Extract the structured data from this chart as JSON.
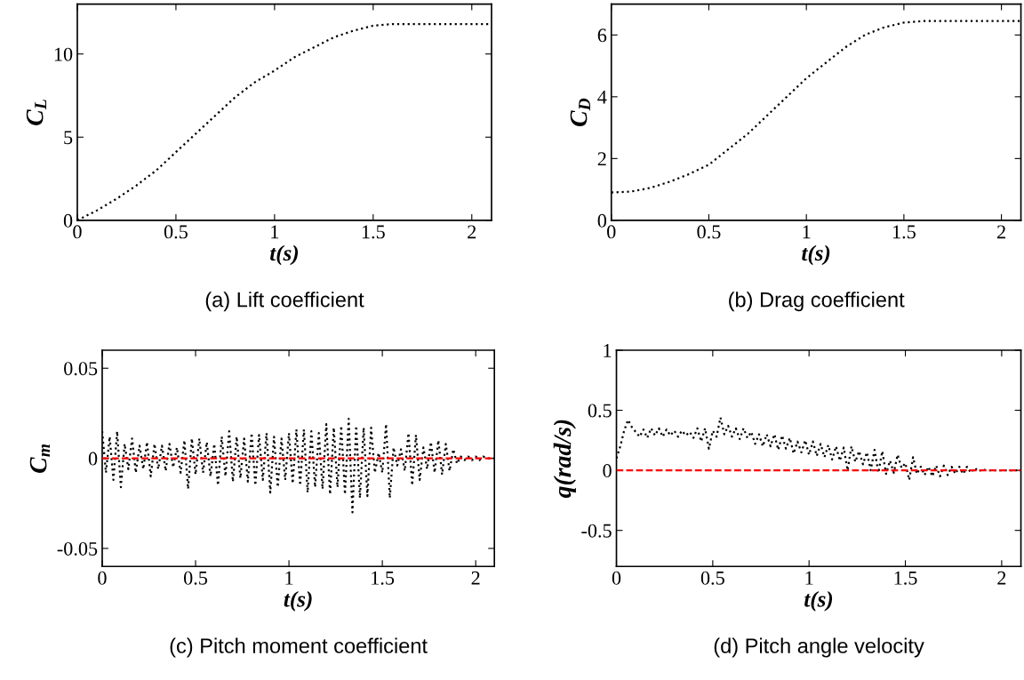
{
  "chart_data": [
    {
      "type": "line",
      "title": "(a) Lift coefficient",
      "xlabel": "t(s)",
      "ylabel": "C$_{L}$",
      "xlim": [
        0,
        2.1
      ],
      "xticks": [
        0,
        0.5,
        1,
        1.5,
        2
      ],
      "ylim": [
        0,
        13
      ],
      "yticks": [
        0,
        5,
        10
      ],
      "line_style": "dotted",
      "marker": "none",
      "series": [
        {
          "color": "#000000",
          "x": [
            0,
            0.1,
            0.2,
            0.3,
            0.4,
            0.5,
            0.6,
            0.7,
            0.8,
            0.9,
            1.0,
            1.1,
            1.2,
            1.3,
            1.4,
            1.5,
            1.6,
            1.8,
            2.1
          ],
          "values": [
            0,
            0.6,
            1.3,
            2.1,
            3.0,
            4.1,
            5.2,
            6.3,
            7.4,
            8.3,
            9.0,
            9.8,
            10.4,
            11.0,
            11.4,
            11.7,
            11.8,
            11.8,
            11.8
          ]
        }
      ]
    },
    {
      "type": "line",
      "title": "(b) Drag coefficient",
      "xlabel": "t(s)",
      "ylabel": "C$_{D}$",
      "xlim": [
        0,
        2.1
      ],
      "xticks": [
        0,
        0.5,
        1,
        1.5,
        2
      ],
      "ylim": [
        0,
        7
      ],
      "yticks": [
        0,
        2,
        4,
        6
      ],
      "line_style": "dotted",
      "marker": "none",
      "series": [
        {
          "color": "#000000",
          "x": [
            0,
            0.1,
            0.2,
            0.3,
            0.4,
            0.5,
            0.6,
            0.7,
            0.8,
            0.9,
            1.0,
            1.1,
            1.2,
            1.3,
            1.4,
            1.5,
            1.6,
            2.1
          ],
          "values": [
            0.9,
            0.93,
            1.05,
            1.25,
            1.5,
            1.8,
            2.3,
            2.8,
            3.4,
            4.0,
            4.6,
            5.1,
            5.6,
            6.0,
            6.25,
            6.4,
            6.45,
            6.45
          ]
        }
      ]
    },
    {
      "type": "line",
      "title": "(c) Pitch moment coefficient",
      "xlabel": "t(s)",
      "ylabel": "C$_{m}$",
      "xlim": [
        0,
        2.1
      ],
      "xticks": [
        0,
        0.5,
        1,
        1.5,
        2
      ],
      "ylim": [
        -0.06,
        0.06
      ],
      "yticks": [
        -0.05,
        0,
        0.05
      ],
      "line_style": "dotted",
      "marker": "none",
      "ref_lines": [
        {
          "axis": "y",
          "value": 0,
          "color": "#ff0000",
          "line_style": "dashed"
        }
      ],
      "series": [
        {
          "color": "#000000",
          "x": [
            0,
            0.02,
            0.04,
            0.06,
            0.08,
            0.1,
            0.12,
            0.14,
            0.16,
            0.18,
            0.2,
            0.22,
            0.24,
            0.26,
            0.28,
            0.3,
            0.32,
            0.34,
            0.36,
            0.38,
            0.4,
            0.42,
            0.44,
            0.46,
            0.48,
            0.5,
            0.52,
            0.54,
            0.56,
            0.58,
            0.6,
            0.62,
            0.64,
            0.66,
            0.68,
            0.7,
            0.72,
            0.74,
            0.76,
            0.78,
            0.8,
            0.82,
            0.84,
            0.86,
            0.88,
            0.9,
            0.92,
            0.94,
            0.96,
            0.98,
            1.0,
            1.02,
            1.04,
            1.06,
            1.08,
            1.1,
            1.12,
            1.14,
            1.16,
            1.18,
            1.2,
            1.22,
            1.24,
            1.26,
            1.28,
            1.3,
            1.32,
            1.34,
            1.36,
            1.38,
            1.4,
            1.42,
            1.44,
            1.46,
            1.48,
            1.5,
            1.52,
            1.54,
            1.56,
            1.58,
            1.6,
            1.62,
            1.64,
            1.66,
            1.68,
            1.7,
            1.72,
            1.74,
            1.76,
            1.78,
            1.8,
            1.82,
            1.84,
            1.86,
            1.88,
            1.9,
            1.92,
            1.94,
            1.96,
            1.98,
            2.0,
            2.02,
            2.04,
            2.06,
            2.08,
            2.1
          ],
          "values": [
            0.015,
            -0.008,
            0.012,
            -0.012,
            0.015,
            -0.016,
            0.008,
            -0.006,
            0.011,
            -0.008,
            0.007,
            -0.006,
            0.009,
            -0.01,
            0.008,
            -0.006,
            0.007,
            -0.007,
            0.008,
            -0.005,
            0.006,
            -0.008,
            0.01,
            -0.017,
            0.011,
            -0.009,
            0.011,
            -0.008,
            0.009,
            -0.01,
            0.008,
            -0.015,
            0.012,
            -0.01,
            0.015,
            -0.013,
            0.012,
            -0.011,
            0.011,
            -0.013,
            0.014,
            -0.015,
            0.013,
            -0.012,
            0.014,
            -0.019,
            0.012,
            -0.016,
            0.011,
            -0.012,
            0.014,
            -0.014,
            0.016,
            -0.015,
            0.016,
            -0.019,
            0.015,
            -0.016,
            0.014,
            -0.017,
            0.019,
            -0.02,
            0.017,
            -0.016,
            0.018,
            -0.02,
            0.022,
            -0.03,
            0.018,
            -0.022,
            0.017,
            -0.021,
            0.017,
            -0.008,
            0.003,
            -0.008,
            0.019,
            -0.022,
            0.006,
            -0.004,
            0.005,
            -0.007,
            0.014,
            -0.015,
            0.013,
            -0.012,
            0.006,
            -0.006,
            0.009,
            -0.008,
            0.01,
            -0.009,
            0.008,
            -0.007,
            0.005,
            -0.003,
            0.001,
            -0.001,
            0.001,
            -0.001,
            0.001,
            -0.001,
            0.001,
            0,
            0,
            0
          ]
        }
      ]
    },
    {
      "type": "line",
      "title": "(d) Pitch angle velocity",
      "xlabel": "t(s)",
      "ylabel": "q(rad/s)",
      "xlim": [
        0,
        2.1
      ],
      "xticks": [
        0,
        0.5,
        1,
        1.5,
        2
      ],
      "ylim": [
        -0.8,
        1
      ],
      "yticks": [
        -0.5,
        0,
        0.5,
        1
      ],
      "line_style": "dotted",
      "marker": "none",
      "ref_lines": [
        {
          "axis": "y",
          "value": 0,
          "color": "#ff0000",
          "line_style": "dashed"
        }
      ],
      "series": [
        {
          "color": "#000000",
          "x": [
            0,
            0.02,
            0.04,
            0.06,
            0.08,
            0.1,
            0.12,
            0.14,
            0.16,
            0.18,
            0.2,
            0.22,
            0.24,
            0.26,
            0.28,
            0.3,
            0.32,
            0.34,
            0.36,
            0.38,
            0.4,
            0.42,
            0.44,
            0.46,
            0.48,
            0.5,
            0.52,
            0.54,
            0.56,
            0.58,
            0.6,
            0.62,
            0.64,
            0.66,
            0.68,
            0.7,
            0.72,
            0.74,
            0.76,
            0.78,
            0.8,
            0.82,
            0.84,
            0.86,
            0.88,
            0.9,
            0.92,
            0.94,
            0.96,
            0.98,
            1.0,
            1.02,
            1.04,
            1.06,
            1.08,
            1.1,
            1.12,
            1.14,
            1.16,
            1.18,
            1.2,
            1.22,
            1.24,
            1.26,
            1.28,
            1.3,
            1.32,
            1.34,
            1.36,
            1.38,
            1.4,
            1.42,
            1.44,
            1.46,
            1.48,
            1.5,
            1.52,
            1.54,
            1.56,
            1.58,
            1.6,
            1.62,
            1.64,
            1.66,
            1.68,
            1.7,
            1.72,
            1.74,
            1.76,
            1.78,
            1.8,
            1.82,
            1.84,
            1.86,
            1.88,
            1.9,
            1.92,
            1.94,
            1.96,
            1.98,
            2.0,
            2.02,
            2.04,
            2.06,
            2.08,
            2.1
          ],
          "values": [
            0.1,
            0.2,
            0.33,
            0.42,
            0.36,
            0.32,
            0.28,
            0.34,
            0.27,
            0.35,
            0.29,
            0.35,
            0.28,
            0.34,
            0.29,
            0.33,
            0.28,
            0.33,
            0.29,
            0.32,
            0.27,
            0.35,
            0.24,
            0.35,
            0.18,
            0.33,
            0.28,
            0.44,
            0.3,
            0.37,
            0.28,
            0.35,
            0.26,
            0.35,
            0.27,
            0.32,
            0.22,
            0.3,
            0.2,
            0.3,
            0.2,
            0.3,
            0.17,
            0.29,
            0.18,
            0.27,
            0.14,
            0.24,
            0.15,
            0.25,
            0.13,
            0.24,
            0.12,
            0.22,
            0.11,
            0.21,
            0.09,
            0.2,
            0.08,
            0.19,
            0.0,
            0.2,
            0.07,
            0.16,
            0.05,
            0.15,
            0.0,
            0.17,
            -0.02,
            0.16,
            -0.03,
            0.08,
            -0.02,
            0.13,
            0.02,
            0.06,
            -0.08,
            0.11,
            -0.03,
            0.03,
            -0.04,
            0.03,
            -0.05,
            0.04,
            -0.05,
            0.04,
            -0.04,
            0.03,
            -0.03,
            0.03,
            -0.03,
            0.03,
            -0.02,
            0.02,
            -0.01,
            0.01,
            0,
            0,
            0,
            0,
            0,
            0,
            0,
            0,
            0,
            0
          ]
        }
      ]
    }
  ]
}
